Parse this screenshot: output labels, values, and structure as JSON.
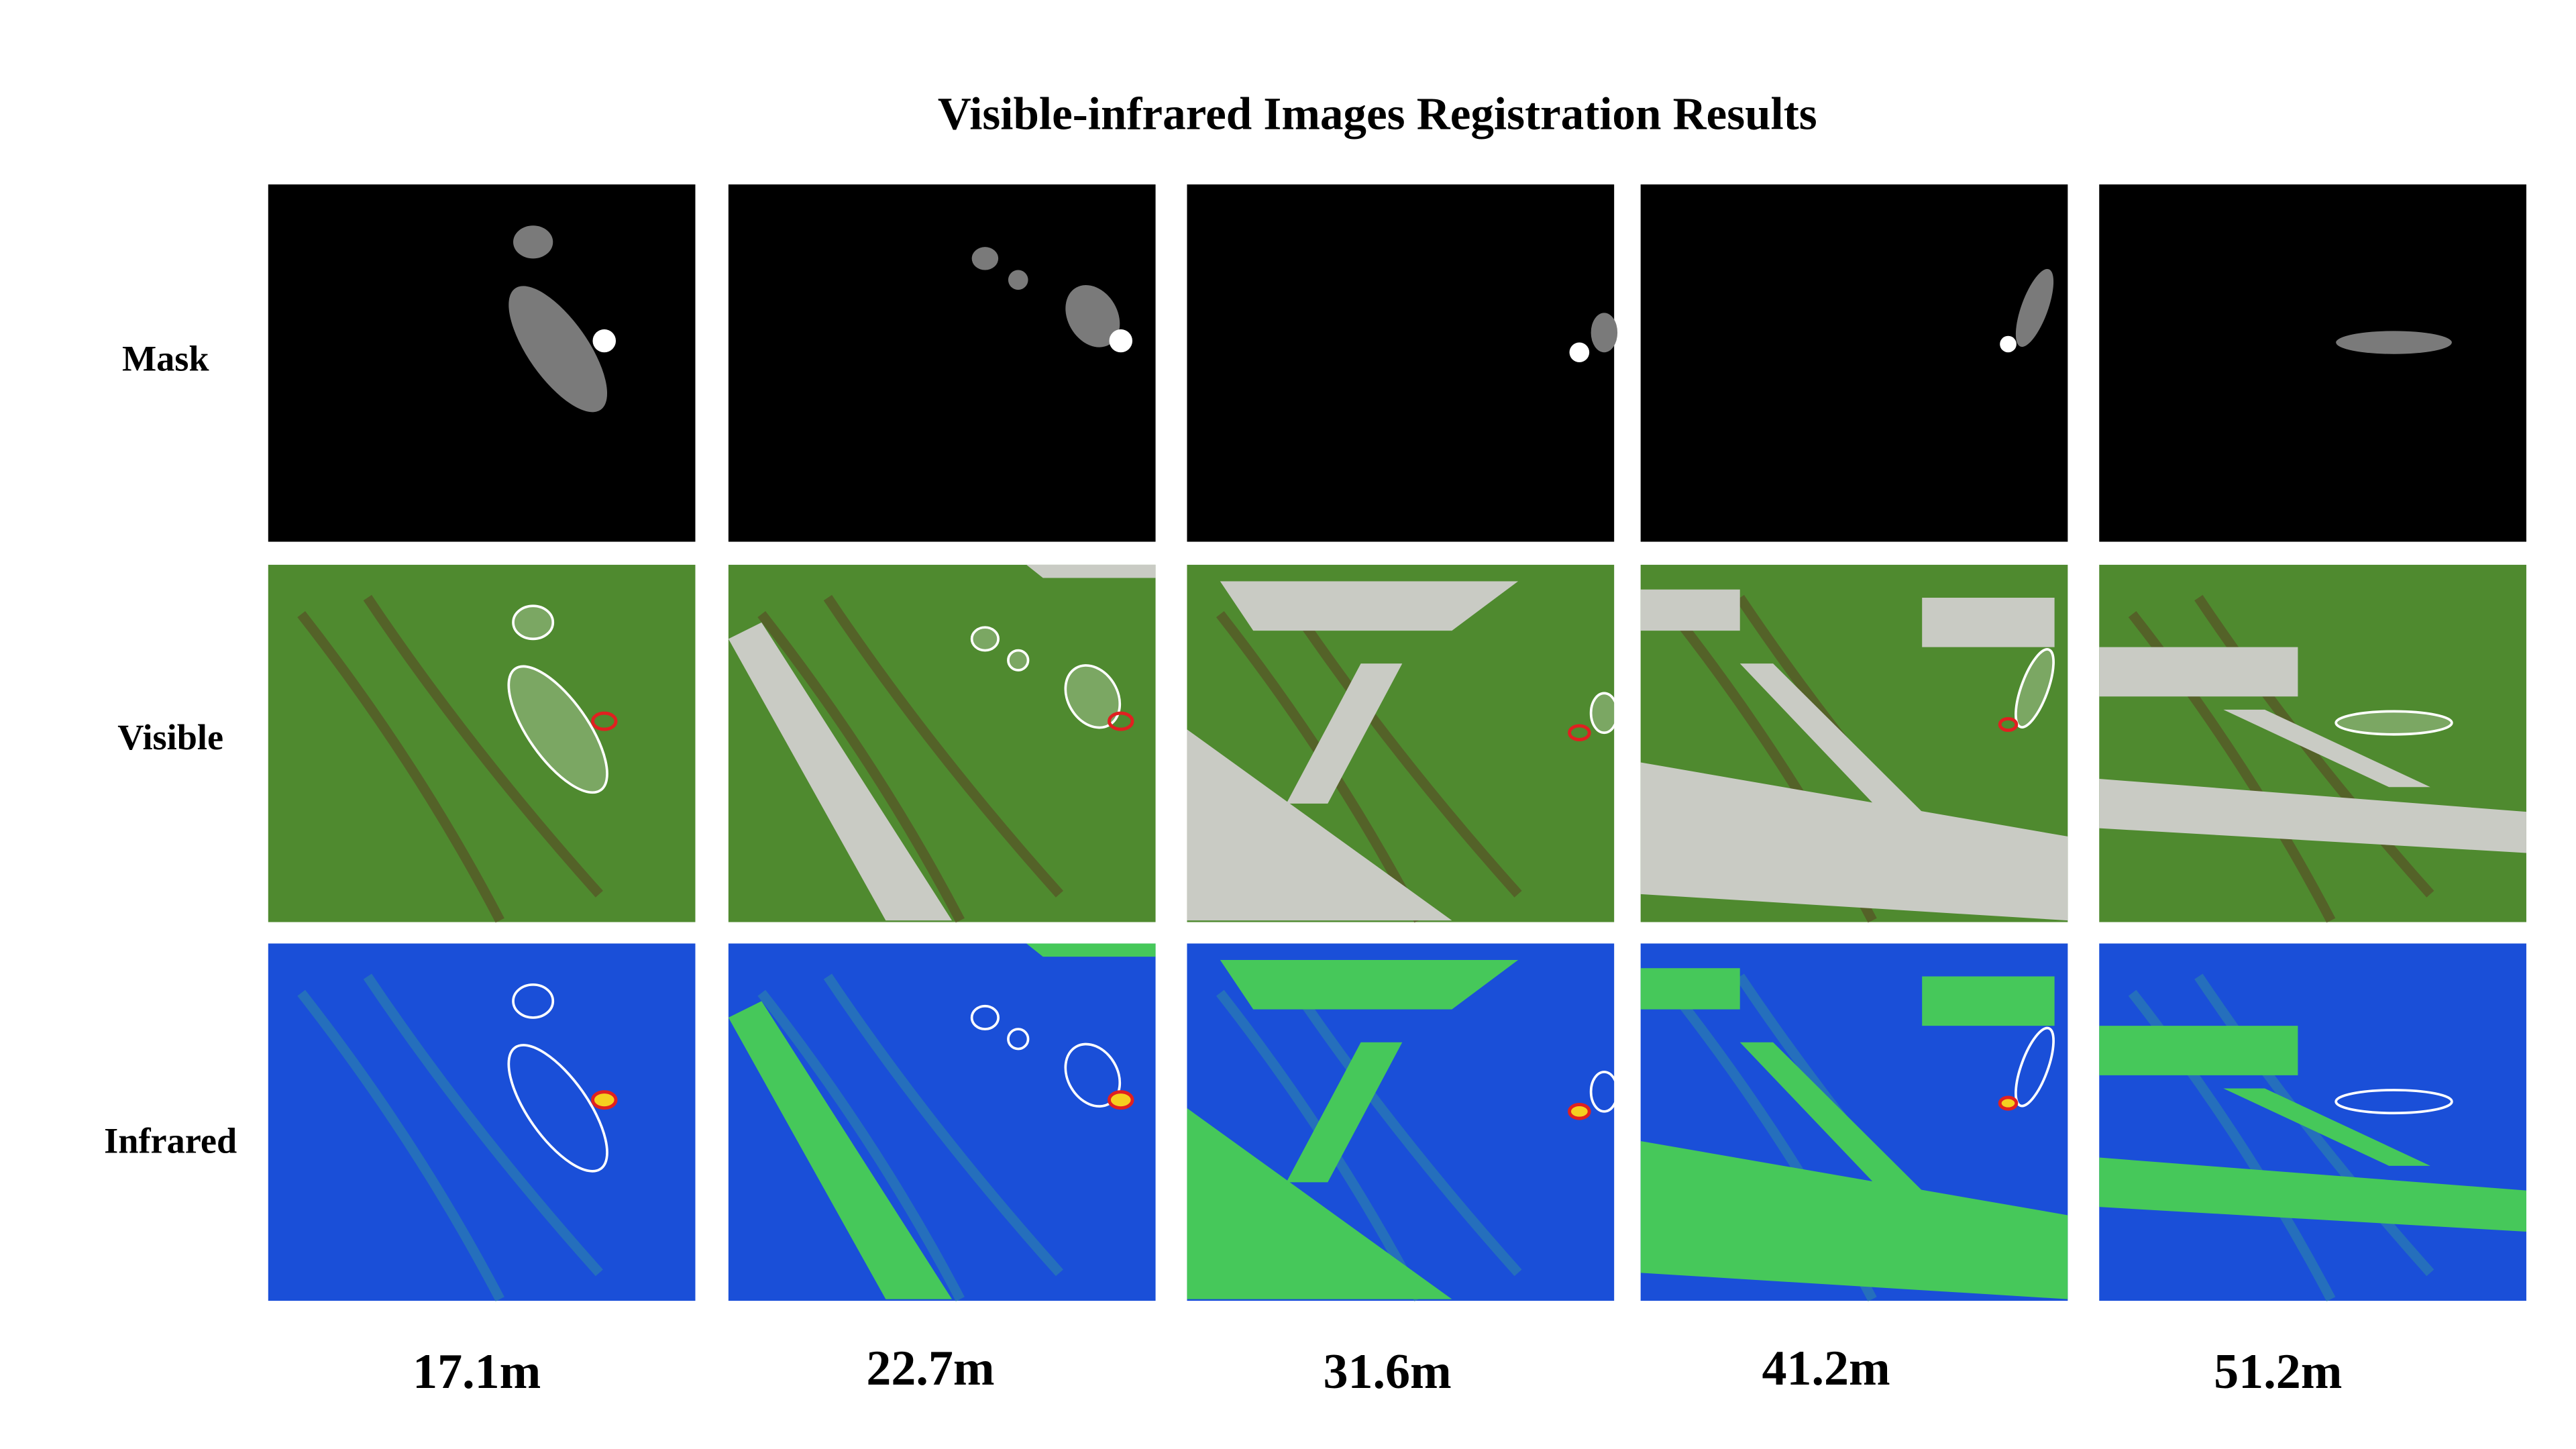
{
  "title": "Visible-infrared Images Registration Results",
  "rows": [
    "Mask",
    "Visible",
    "Infrared"
  ],
  "columns": [
    "17.1m",
    "22.7m",
    "31.6m",
    "41.2m",
    "51.2m"
  ]
}
